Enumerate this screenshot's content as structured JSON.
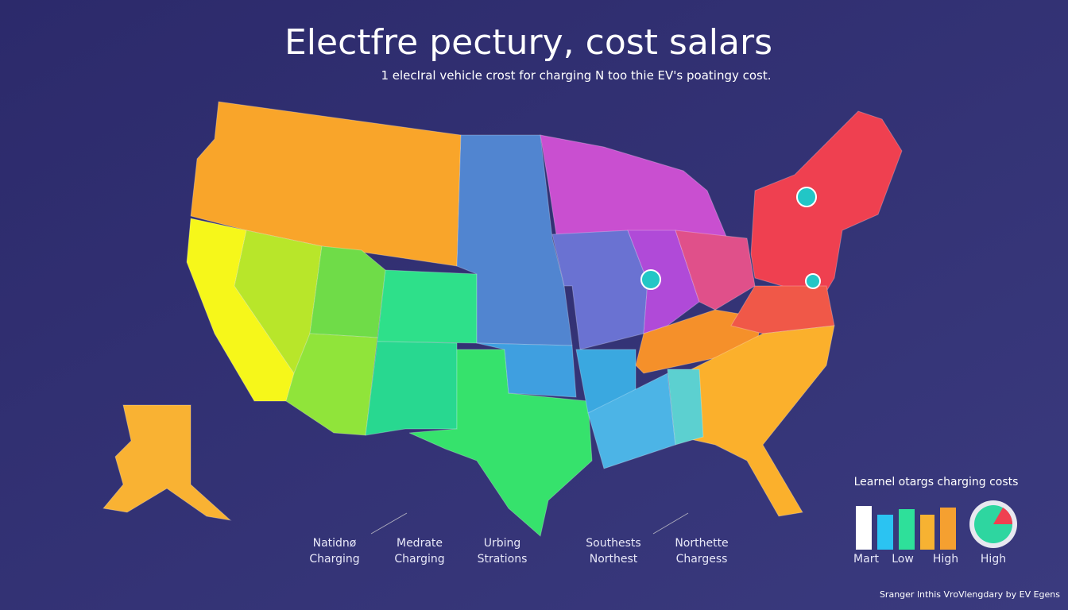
{
  "header": {
    "title": "Electfre pectury, cost salars",
    "subtitle": "1 elecIral vehicle crost for charging N too thie EV's poatingy cost."
  },
  "region_labels": [
    [
      "Natidnø",
      "Charging"
    ],
    [
      "Medrate",
      "Charging"
    ],
    [
      "Urbing",
      "Strations"
    ],
    [
      "Southests",
      "Northest"
    ],
    [
      "Northette",
      "Chargess"
    ]
  ],
  "legend": {
    "title": "Learnel otargs charging costs",
    "labels": [
      "Mart",
      "Low",
      "High",
      "High"
    ]
  },
  "footer": "Sranger lnthis VroVlengdary by EV Egens"
}
